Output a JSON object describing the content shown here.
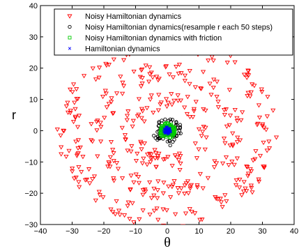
{
  "chart_data": {
    "type": "scatter",
    "xlabel": "θ",
    "ylabel": "r",
    "xlim": [
      -40,
      40
    ],
    "ylim": [
      -30,
      40
    ],
    "xticks": [
      "−40",
      "−30",
      "−20",
      "−10",
      "0",
      "10",
      "20",
      "30",
      "40"
    ],
    "yticks": [
      "40",
      "30",
      "20",
      "10",
      "0",
      "−10",
      "−20",
      "−30"
    ],
    "grid": false,
    "legend_position": "top-right",
    "series": [
      {
        "name": "Noisy Hamiltonian dynamics",
        "marker": "triangle-down",
        "color": "#ff0000",
        "description_rings": [
          {
            "radius": 10,
            "n": 90
          },
          {
            "radius": 19,
            "n": 150
          },
          {
            "radius": 28,
            "n": 190
          }
        ]
      },
      {
        "name": "Noisy Hamiltonian dynamics(resample r each 50 steps)",
        "marker": "circle",
        "color": "#000000",
        "radius": 3.5,
        "n": 60
      },
      {
        "name": "Noisy Hamiltonian dynamics with friction",
        "marker": "square",
        "color": "#00cc00",
        "radius": 2.5,
        "n": 120
      },
      {
        "name": "Hamiltonian dynamics",
        "marker": "x",
        "color": "#0000ff",
        "radius": 1.2,
        "n": 40
      }
    ]
  }
}
